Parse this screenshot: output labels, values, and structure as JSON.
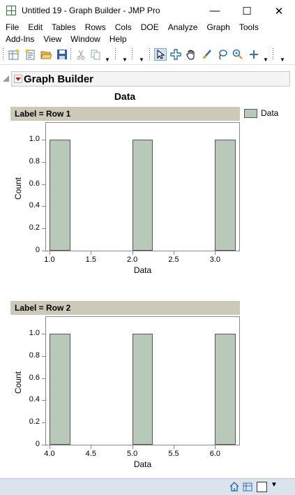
{
  "window": {
    "title": "Untitled 19 - Graph Builder - JMP Pro",
    "minimize": "—",
    "maximize": "☐",
    "close": "✕"
  },
  "menu": {
    "row1": [
      "File",
      "Edit",
      "Tables",
      "Rows",
      "Cols",
      "DOE",
      "Analyze",
      "Graph",
      "Tools"
    ],
    "row2": [
      "Add-Ins",
      "View",
      "Window",
      "Help"
    ]
  },
  "toolbar": {
    "icons": [
      "new-data-table-icon",
      "new-script-icon",
      "open-icon",
      "save-icon",
      "cut-icon",
      "copy-icon",
      "arrow-select-icon",
      "crosshair-icon",
      "grabber-hand-icon",
      "brush-icon",
      "lasso-icon",
      "magnifier-icon",
      "plus-icon"
    ]
  },
  "graph_builder": {
    "header": "Graph Builder",
    "title": "Data",
    "legend": {
      "label": "Data",
      "color": "#b8c9ba"
    }
  },
  "chart_data": [
    {
      "type": "bar",
      "panel_label": "Label = Row 1",
      "x": [
        1.0,
        2.0,
        3.0
      ],
      "values": [
        1,
        1,
        1
      ],
      "xlim": [
        0.95,
        3.3
      ],
      "ylim": [
        0,
        1.1
      ],
      "xticks": [
        "1.0",
        "1.5",
        "2.0",
        "2.5",
        "3.0"
      ],
      "yticks": [
        "0",
        "0.2",
        "0.4",
        "0.6",
        "0.8",
        "1.0"
      ],
      "xlabel": "Data",
      "ylabel": "Count",
      "bar_color": "#b8c9ba"
    },
    {
      "type": "bar",
      "panel_label": "Label = Row 2",
      "x": [
        4.0,
        5.0,
        6.0
      ],
      "values": [
        1,
        1,
        1
      ],
      "xlim": [
        3.95,
        6.3
      ],
      "ylim": [
        0,
        1.1
      ],
      "xticks": [
        "4.0",
        "4.5",
        "5.0",
        "5.5",
        "6.0"
      ],
      "yticks": [
        "0",
        "0.2",
        "0.4",
        "0.6",
        "0.8",
        "1.0"
      ],
      "xlabel": "Data",
      "ylabel": "Count",
      "bar_color": "#b8c9ba"
    }
  ],
  "status": {
    "icons": [
      "home-icon",
      "window-list-icon"
    ]
  }
}
